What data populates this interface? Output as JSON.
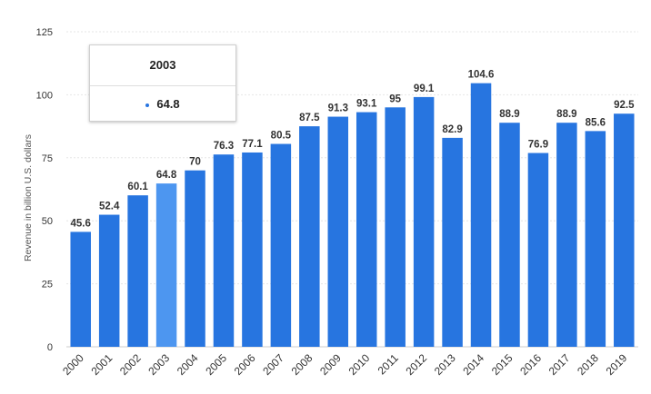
{
  "chart_data": {
    "type": "bar",
    "categories": [
      "2000",
      "2001",
      "2002",
      "2003",
      "2004",
      "2005",
      "2006",
      "2007",
      "2008",
      "2009",
      "2010",
      "2011",
      "2012",
      "2013",
      "2014",
      "2015",
      "2016",
      "2017",
      "2018",
      "2019"
    ],
    "values": [
      45.6,
      52.4,
      60.1,
      64.8,
      70,
      76.3,
      77.1,
      80.5,
      87.5,
      91.3,
      93.1,
      95,
      99.1,
      82.9,
      104.6,
      88.9,
      76.9,
      88.9,
      85.6,
      92.5
    ],
    "data_labels": [
      "45.6",
      "52.4",
      "60.1",
      "64.8",
      "70",
      "76.3",
      "77.1",
      "80.5",
      "87.5",
      "91.3",
      "93.1",
      "95",
      "99.1",
      "82.9",
      "104.6",
      "88.9",
      "76.9",
      "88.9",
      "85.6",
      "92.5"
    ],
    "ylabel": "Revenue in billion U.S. dollars",
    "xlabel": "",
    "ylim": [
      0,
      125
    ],
    "yticks": [
      0,
      25,
      50,
      75,
      100,
      125
    ],
    "grid": true,
    "bar_color": "#2775e0",
    "highlight_color": "#4d96f0",
    "highlighted_category": "2003"
  },
  "tooltip": {
    "title": "2003",
    "value": "64.8"
  }
}
